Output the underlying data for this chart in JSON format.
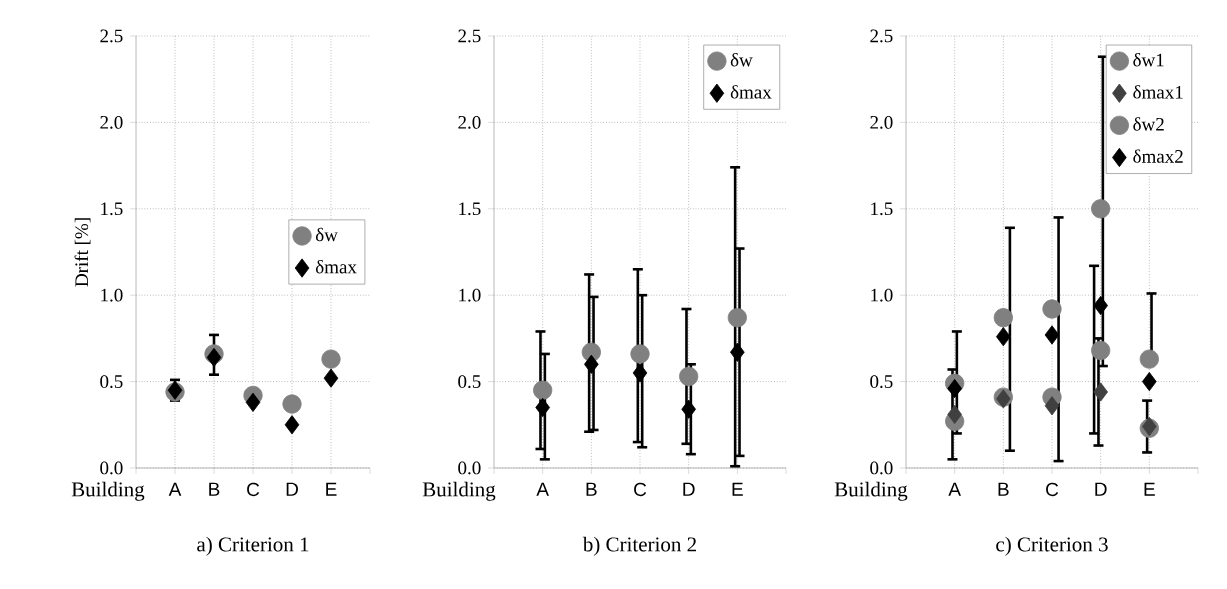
{
  "chart_data": [
    {
      "type": "scatter",
      "title": "a)   Criterion 1",
      "xlabel": "Building",
      "ylabel": "Drift [%]",
      "categories": [
        "A",
        "B",
        "C",
        "D",
        "E"
      ],
      "series": [
        {
          "name": "δw",
          "color": "#808080",
          "marker": "circle",
          "values": [
            0.44,
            0.66,
            0.42,
            0.37,
            0.63
          ]
        },
        {
          "name": "δmax",
          "color": "#000000",
          "marker": "diamond",
          "values": [
            0.45,
            0.64,
            0.38,
            0.25,
            0.52
          ],
          "errors": [
            0.06,
            [
              0.54,
              0.77
            ],
            null,
            null,
            null
          ]
        }
      ],
      "ylim": [
        0,
        2.5
      ],
      "yticks": [
        {
          "value": 0,
          "label": "0.0"
        },
        {
          "value": 0.5,
          "label": "0.5"
        },
        {
          "value": 1,
          "label": "1.0"
        },
        {
          "value": 1.5,
          "label": "1.5"
        },
        {
          "value": 2,
          "label": "2.0"
        },
        {
          "value": 2.5,
          "label": "2.5"
        }
      ],
      "grid": true,
      "legend": "right"
    },
    {
      "type": "scatter",
      "title": "b)   Criterion 2",
      "xlabel": "Building",
      "categories": [
        "A",
        "B",
        "C",
        "D",
        "E"
      ],
      "series": [
        {
          "name": "δw",
          "color": "#808080",
          "marker": "circle",
          "values": [
            0.45,
            0.67,
            0.66,
            0.53,
            0.87
          ],
          "errors": [
            [
              0.11,
              0.79
            ],
            [
              0.21,
              1.12
            ],
            [
              0.15,
              1.15
            ],
            [
              0.14,
              0.92
            ],
            [
              0.01,
              1.74
            ]
          ]
        },
        {
          "name": "δmax",
          "color": "#000000",
          "marker": "diamond",
          "values": [
            0.35,
            0.6,
            0.55,
            0.34,
            0.67
          ],
          "errors": [
            [
              0.05,
              0.66
            ],
            [
              0.22,
              0.99
            ],
            [
              0.12,
              1.0
            ],
            [
              0.08,
              0.6
            ],
            [
              0.07,
              1.27
            ]
          ]
        }
      ],
      "ylim": [
        0,
        2.5
      ],
      "yticks": [
        {
          "value": 0,
          "label": "0.0"
        },
        {
          "value": 0.5,
          "label": "0.5"
        },
        {
          "value": 1,
          "label": "1.0"
        },
        {
          "value": 1.5,
          "label": "1.5"
        },
        {
          "value": 2,
          "label": "2.0"
        },
        {
          "value": 2.5,
          "label": "2.5"
        }
      ],
      "grid": true,
      "legend": "top right"
    },
    {
      "type": "scatter",
      "title": "c)   Criterion 3",
      "xlabel": "Building",
      "categories": [
        "A",
        "B",
        "C",
        "D",
        "E"
      ],
      "series": [
        {
          "name": "δw1",
          "color": "#808080",
          "marker": "circle",
          "values": [
            0.27,
            0.41,
            0.41,
            0.68,
            0.23
          ],
          "errors": [
            null,
            null,
            null,
            [
              0.2,
              1.17
            ],
            null
          ]
        },
        {
          "name": "δmax1",
          "color": "#404040",
          "marker": "diamond",
          "values": [
            0.31,
            0.4,
            0.36,
            0.44,
            0.24
          ],
          "errors": [
            [
              0.05,
              0.57
            ],
            null,
            null,
            [
              0.13,
              0.75
            ],
            [
              0.09,
              0.39
            ]
          ]
        },
        {
          "name": "δw2",
          "color": "#808080",
          "marker": "circle",
          "values": [
            0.49,
            0.87,
            0.92,
            1.5,
            0.63
          ],
          "errors": [
            [
              0.2,
              0.79
            ],
            null,
            null,
            [
              0.59,
              2.38
            ],
            [
              0.63,
              1.01
            ]
          ]
        },
        {
          "name": "δmax2",
          "color": "#000000",
          "marker": "diamond",
          "values": [
            0.46,
            0.76,
            0.77,
            0.94,
            0.5
          ],
          "errors": [
            null,
            [
              0.1,
              1.39
            ],
            [
              0.04,
              1.45
            ],
            null,
            null
          ]
        }
      ],
      "ylim": [
        0,
        2.5
      ],
      "yticks": [
        {
          "value": 0,
          "label": "0.0"
        },
        {
          "value": 0.5,
          "label": "0.5"
        },
        {
          "value": 1,
          "label": "1.0"
        },
        {
          "value": 1.5,
          "label": "1.5"
        },
        {
          "value": 2,
          "label": "2.0"
        },
        {
          "value": 2.5,
          "label": "2.5"
        }
      ],
      "grid": true,
      "legend": "top right"
    }
  ]
}
